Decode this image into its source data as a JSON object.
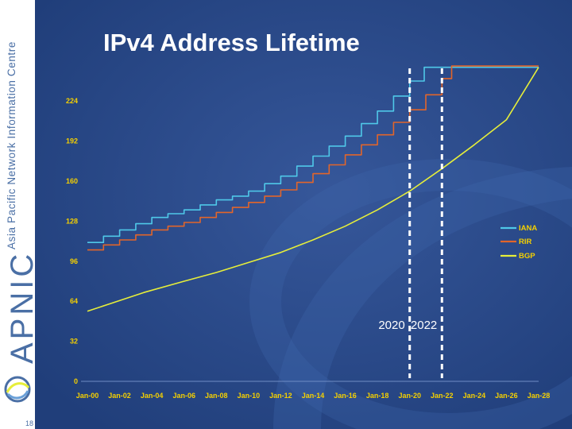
{
  "slide": {
    "org_name": "Asia Pacific Network Information Centre",
    "org_brand": "APNIC",
    "slide_number": "18",
    "title": "IPv4 Address Lifetime"
  },
  "colors": {
    "background": "#2a4a8a",
    "iana": "#4fc8e8",
    "rir": "#e2652a",
    "bgp": "#e6ee3a",
    "tick_labels": "#f5d000",
    "marker": "#ffffff"
  },
  "chart_data": {
    "type": "line",
    "title": "IPv4 Address Lifetime",
    "xlabel": "",
    "ylabel": "",
    "xlim": [
      2000,
      2028
    ],
    "ylim": [
      0,
      256
    ],
    "yticks": [
      0,
      32,
      64,
      96,
      128,
      160,
      192,
      224
    ],
    "xticks": [
      {
        "x": 2000,
        "label": "Jan-00"
      },
      {
        "x": 2002,
        "label": "Jan-02"
      },
      {
        "x": 2004,
        "label": "Jan-04"
      },
      {
        "x": 2006,
        "label": "Jan-06"
      },
      {
        "x": 2008,
        "label": "Jan-08"
      },
      {
        "x": 2010,
        "label": "Jan-10"
      },
      {
        "x": 2012,
        "label": "Jan-12"
      },
      {
        "x": 2014,
        "label": "Jan-14"
      },
      {
        "x": 2016,
        "label": "Jan-16"
      },
      {
        "x": 2018,
        "label": "Jan-18"
      },
      {
        "x": 2020,
        "label": "Jan-20"
      },
      {
        "x": 2022,
        "label": "Jan-22"
      },
      {
        "x": 2024,
        "label": "Jan-24"
      },
      {
        "x": 2026,
        "label": "Jan-26"
      },
      {
        "x": 2028,
        "label": "Jan-28"
      }
    ],
    "legend": [
      "IANA",
      "RIR",
      "BGP"
    ],
    "legend_position": "right",
    "series": [
      {
        "name": "IANA",
        "color": "#4fc8e8",
        "step": true,
        "x": [
          2000,
          2001,
          2002,
          2003,
          2004,
          2005,
          2006,
          2007,
          2008,
          2009,
          2010,
          2011,
          2012,
          2013,
          2014,
          2015,
          2016,
          2017,
          2018,
          2019,
          2020,
          2020.9,
          2028
        ],
        "y": [
          111,
          116,
          121,
          126,
          131,
          134,
          137,
          141,
          145,
          148,
          152,
          158,
          164,
          172,
          180,
          188,
          196,
          206,
          216,
          228,
          240,
          251,
          251
        ]
      },
      {
        "name": "RIR",
        "color": "#e2652a",
        "step": true,
        "x": [
          2000,
          2001,
          2002,
          2003,
          2004,
          2005,
          2006,
          2007,
          2008,
          2009,
          2010,
          2011,
          2012,
          2013,
          2014,
          2015,
          2016,
          2017,
          2018,
          2019,
          2020,
          2021,
          2022,
          2022.6,
          2028
        ],
        "y": [
          105,
          109,
          113,
          117,
          121,
          124,
          127,
          131,
          135,
          139,
          143,
          148,
          153,
          159,
          166,
          173,
          181,
          189,
          197,
          207,
          217,
          229,
          242,
          252,
          252
        ]
      },
      {
        "name": "BGP",
        "color": "#e6ee3a",
        "step": false,
        "x": [
          2000,
          2003.5,
          2006,
          2008,
          2010,
          2012,
          2014,
          2016,
          2018,
          2020,
          2022,
          2024,
          2026,
          2028
        ],
        "y": [
          56,
          71,
          80,
          87,
          95,
          103,
          113,
          124,
          137,
          152,
          170,
          189,
          209,
          251
        ]
      }
    ],
    "markers": [
      {
        "x": 2020,
        "label": "2020"
      },
      {
        "x": 2022,
        "label": "2022"
      }
    ]
  }
}
